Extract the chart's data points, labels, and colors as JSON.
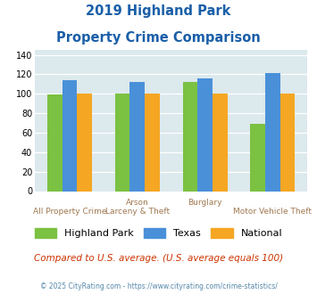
{
  "title_line1": "2019 Highland Park",
  "title_line2": "Property Crime Comparison",
  "highland_park": [
    99,
    100,
    112,
    69
  ],
  "texas": [
    114,
    112,
    116,
    121
  ],
  "national": [
    100,
    100,
    100,
    100
  ],
  "bar_colors": {
    "highland_park": "#7bc142",
    "texas": "#4a90d9",
    "national": "#f5a623"
  },
  "ylim": [
    0,
    145
  ],
  "yticks": [
    0,
    20,
    40,
    60,
    80,
    100,
    120,
    140
  ],
  "plot_bg": "#dce9ed",
  "title_color": "#1a5fa8",
  "top_labels": [
    "",
    "Arson",
    "Burglary",
    ""
  ],
  "bot_labels": [
    "All Property Crime",
    "Larceny & Theft",
    "",
    "Motor Vehicle Theft"
  ],
  "footer_text": "Compared to U.S. average. (U.S. average equals 100)",
  "credit_text": "© 2025 CityRating.com - https://www.cityrating.com/crime-statistics/",
  "legend_labels": [
    "Highland Park",
    "Texas",
    "National"
  ]
}
